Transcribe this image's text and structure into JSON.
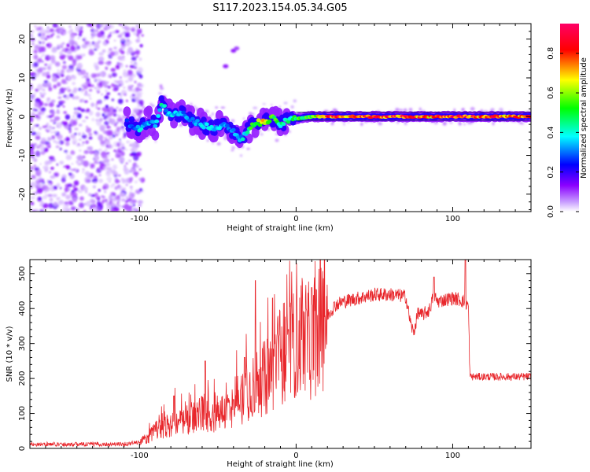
{
  "figure": {
    "title": "S117.2023.154.05.34.G05"
  },
  "chart_data": [
    {
      "type": "heatmap",
      "xlabel": "Height of straight line (km)",
      "ylabel": "Frequency (Hz)",
      "xlim": [
        -170,
        150
      ],
      "ylim": [
        -24.5,
        24
      ],
      "x_ticks": [
        -100,
        0,
        100
      ],
      "y_ticks": [
        -20,
        -10,
        0,
        10,
        20
      ],
      "grid": false,
      "colorbar": {
        "label": "Normalized spectral amplitude",
        "range": [
          0,
          0.95
        ],
        "ticks": [
          0.0,
          0.2,
          0.4,
          0.6,
          0.8
        ],
        "colors": [
          "#ffffff",
          "#8a00ff",
          "#0000ff",
          "#00ffff",
          "#00ff00",
          "#ffff00",
          "#ff0000",
          "#ff0066"
        ]
      },
      "noise_region_x": [
        -170,
        -100
      ],
      "ridge_x": [
        -108,
        -100,
        -95,
        -90,
        -86,
        -82,
        -78,
        -72,
        -66,
        -60,
        -55,
        -50,
        -45,
        -40,
        -36,
        -33,
        -30,
        -25,
        -20,
        -15,
        -10,
        -5,
        0,
        10,
        20,
        40,
        60,
        80,
        100,
        120,
        150
      ],
      "ridge_y": [
        -1.5,
        -3.5,
        -1,
        -2,
        3.5,
        1,
        0.5,
        1,
        -1,
        -2,
        -3,
        -2.5,
        -2,
        -4,
        -6,
        -5,
        -3,
        -1.5,
        -1.5,
        -0.5,
        -2,
        -1,
        -0.5,
        0,
        0,
        0,
        0,
        0,
        0,
        0,
        0
      ],
      "ridge_amplitude": [
        0.3,
        0.4,
        0.35,
        0.35,
        0.45,
        0.4,
        0.4,
        0.35,
        0.35,
        0.4,
        0.4,
        0.4,
        0.4,
        0.35,
        0.35,
        0.45,
        0.5,
        0.7,
        0.7,
        0.6,
        0.5,
        0.5,
        0.55,
        0.6,
        0.9,
        0.9,
        0.9,
        0.85,
        0.9,
        0.9,
        0.85
      ]
    },
    {
      "type": "line",
      "xlabel": "Height of straight line (km)",
      "ylabel": "SNR (10 * v/v)",
      "xlim": [
        -170,
        150
      ],
      "ylim": [
        0,
        540
      ],
      "x_ticks": [
        -100,
        0,
        100
      ],
      "y_ticks": [
        0,
        100,
        200,
        300,
        400,
        500
      ],
      "grid": false,
      "color": "#e8262b",
      "envelope_x": [
        -170,
        -110,
        -100,
        -95,
        -90,
        -85,
        -80,
        -75,
        -70,
        -65,
        -60,
        -55,
        -50,
        -45,
        -40,
        -35,
        -30,
        -25,
        -20,
        -15,
        -10,
        -5,
        0,
        5,
        10,
        15,
        20,
        25,
        30,
        40,
        50,
        60,
        70,
        73,
        75,
        78,
        80,
        85,
        88,
        90,
        95,
        100,
        105,
        110,
        111,
        112,
        120,
        130,
        140,
        150
      ],
      "envelope_y": [
        12,
        12,
        18,
        30,
        50,
        60,
        65,
        70,
        80,
        90,
        100,
        90,
        110,
        100,
        120,
        150,
        170,
        190,
        200,
        230,
        270,
        280,
        300,
        320,
        300,
        340,
        380,
        410,
        420,
        430,
        440,
        440,
        435,
        360,
        330,
        390,
        380,
        395,
        440,
        420,
        425,
        430,
        425,
        410,
        205,
        205,
        205,
        205,
        205,
        205
      ],
      "peaks": [
        {
          "x": -78,
          "y": 150
        },
        {
          "x": -58,
          "y": 250
        },
        {
          "x": -40,
          "y": 140
        },
        {
          "x": -33,
          "y": 260
        },
        {
          "x": -26,
          "y": 480
        },
        {
          "x": -15,
          "y": 430
        },
        {
          "x": -5,
          "y": 340
        },
        {
          "x": 10,
          "y": 460
        },
        {
          "x": 88,
          "y": 490
        },
        {
          "x": 108,
          "y": 540
        }
      ]
    }
  ]
}
